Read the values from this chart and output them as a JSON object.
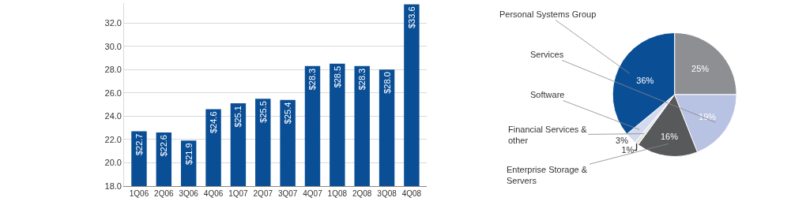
{
  "chart_data": [
    {
      "type": "bar",
      "categories": [
        "1Q06",
        "2Q06",
        "3Q06",
        "4Q06",
        "1Q07",
        "2Q07",
        "3Q07",
        "4Q07",
        "1Q08",
        "2Q08",
        "3Q08",
        "4Q08"
      ],
      "values": [
        22.7,
        22.6,
        21.9,
        24.6,
        25.1,
        25.5,
        25.4,
        28.3,
        28.5,
        28.3,
        28.0,
        33.6
      ],
      "value_labels": [
        "$22.7",
        "$22.6",
        "$21.9",
        "$24.6",
        "$25.1",
        "$25.5",
        "$25.4",
        "$28.3",
        "$28.5",
        "$28.3",
        "$28.0",
        "$33.6"
      ],
      "color": "#0a4f96",
      "ylim": [
        18,
        33.7
      ],
      "yticks": [
        {
          "value": 18,
          "label": "18.0"
        },
        {
          "value": 20,
          "label": "20.0"
        },
        {
          "value": 22,
          "label": "22.0"
        },
        {
          "value": 24,
          "label": "24.0"
        },
        {
          "value": 26,
          "label": "26.0"
        },
        {
          "value": 28,
          "label": "28.0"
        },
        {
          "value": 30,
          "label": "30.0"
        },
        {
          "value": 32,
          "label": "32.0"
        }
      ],
      "grid": "y"
    },
    {
      "type": "pie",
      "categories": [
        null,
        "Services",
        "Enterprise Storage & Servers",
        "Financial Services & other",
        "Software",
        "Personal Systems Group"
      ],
      "values": [
        25,
        19,
        16,
        1,
        3,
        36
      ],
      "value_labels": [
        "25%",
        "19%",
        "16%",
        "1%",
        "3%",
        "36%"
      ],
      "colors": [
        "#8e8f92",
        "#b8c2e2",
        "#58595b",
        "#e6e6e6",
        "#d3d9ee",
        "#0a4f96"
      ]
    }
  ]
}
